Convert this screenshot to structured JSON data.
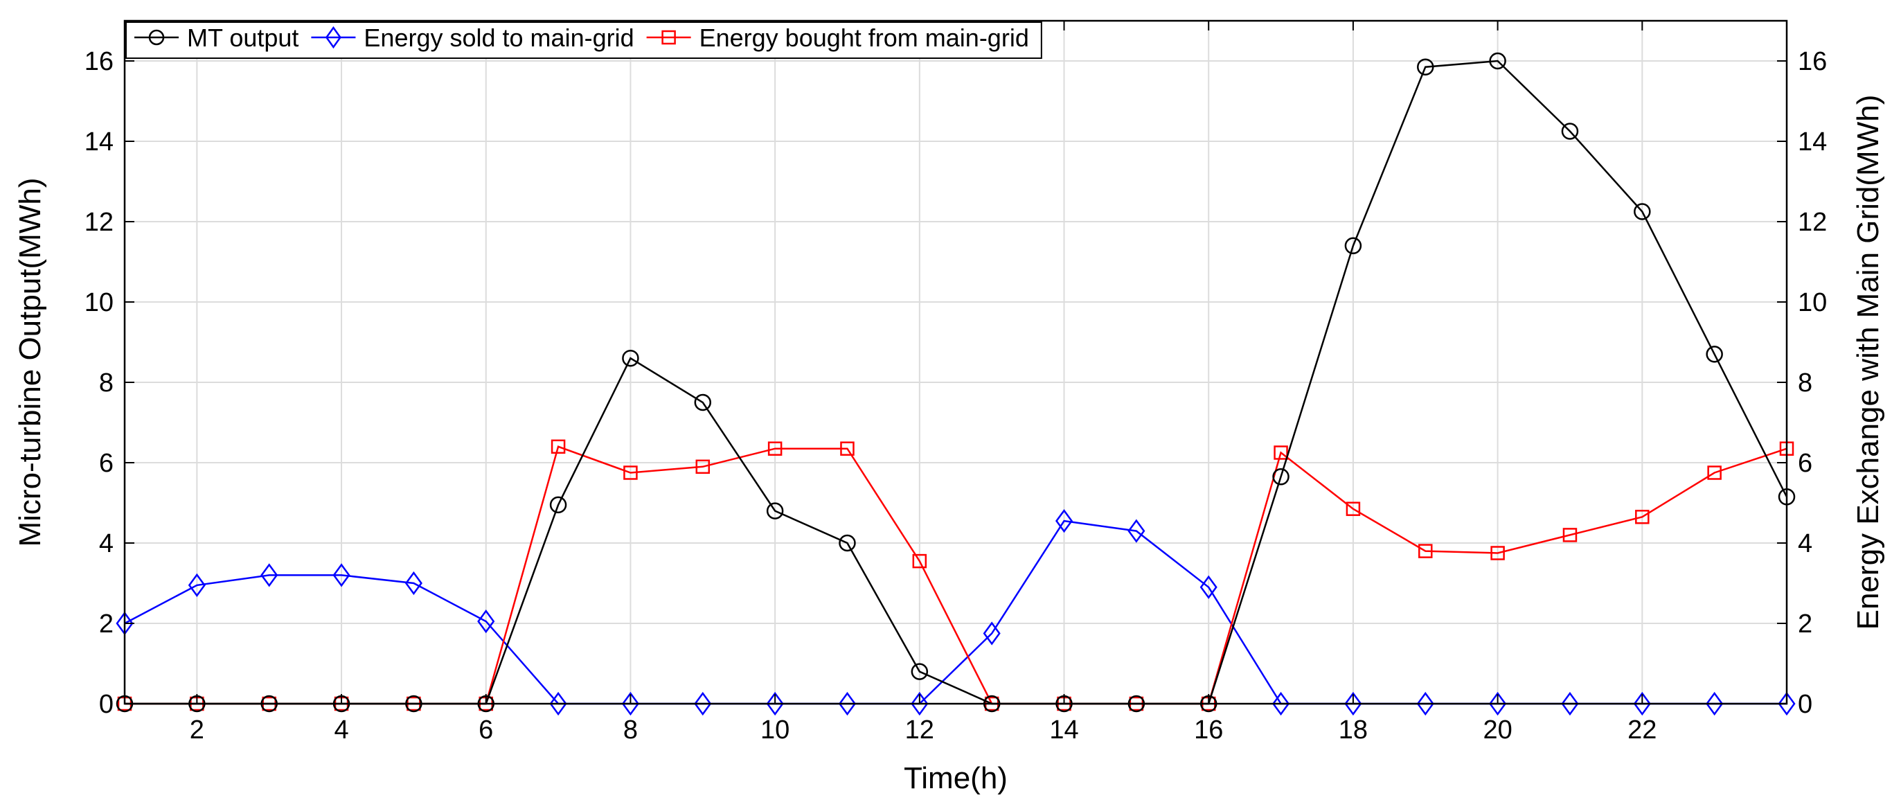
{
  "chart_data": {
    "type": "line",
    "xlabel": "Time(h)",
    "ylabel_left": "Micro-turbine Output(MWh)",
    "ylabel_right": "Energy Exchange with Main Grid(MWh)",
    "xlim": [
      1,
      24
    ],
    "ylim_left": [
      0,
      17
    ],
    "ylim_right": [
      0,
      17
    ],
    "grid": true,
    "legend_position": "top-left",
    "x_ticks": [
      2,
      4,
      6,
      8,
      10,
      12,
      14,
      16,
      18,
      20,
      22
    ],
    "y_ticks": [
      0,
      2,
      4,
      6,
      8,
      10,
      12,
      14,
      16
    ],
    "x": [
      1,
      2,
      3,
      4,
      5,
      6,
      7,
      8,
      9,
      10,
      11,
      12,
      13,
      14,
      15,
      16,
      17,
      18,
      19,
      20,
      21,
      22,
      23,
      24
    ],
    "series": [
      {
        "name": "MT output",
        "color": "#000000",
        "marker": "circle",
        "axis": "left",
        "values": [
          0,
          0,
          0,
          0,
          0,
          0,
          4.95,
          8.6,
          7.5,
          4.8,
          4.0,
          0.8,
          0,
          0,
          0,
          0,
          5.65,
          11.4,
          15.85,
          16.0,
          14.25,
          12.25,
          8.7,
          5.15
        ]
      },
      {
        "name": "Energy sold to main-grid",
        "color": "#0000ff",
        "marker": "diamond",
        "axis": "right",
        "values": [
          2.0,
          2.95,
          3.2,
          3.2,
          3.0,
          2.05,
          0,
          0,
          0,
          0,
          0,
          0,
          1.75,
          4.55,
          4.3,
          2.9,
          0,
          0,
          0,
          0,
          0,
          0,
          0,
          0
        ]
      },
      {
        "name": "Energy bought from main-grid",
        "color": "#ff0000",
        "marker": "square",
        "axis": "right",
        "values": [
          0,
          0,
          0,
          0,
          0,
          0,
          6.4,
          5.75,
          5.9,
          6.35,
          6.35,
          3.55,
          0,
          0,
          0,
          0,
          6.25,
          4.85,
          3.8,
          3.75,
          4.2,
          4.65,
          5.75,
          6.35
        ]
      }
    ]
  }
}
